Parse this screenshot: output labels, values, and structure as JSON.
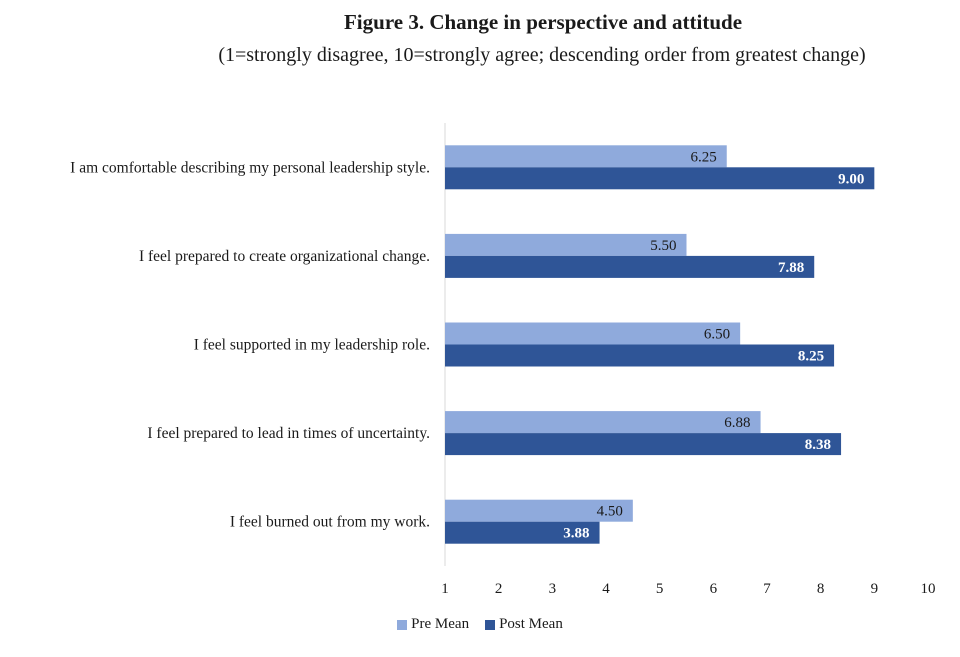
{
  "chart_data": {
    "type": "bar",
    "orientation": "horizontal",
    "title": "Figure 3. Change in perspective and attitude",
    "subtitle": "(1=strongly disagree, 10=strongly agree; descending order from greatest change)",
    "categories": [
      "I am comfortable describing my personal leadership style.",
      "I feel prepared to create organizational change.",
      "I feel supported in my leadership role.",
      "I feel prepared to lead in times of uncertainty.",
      "I feel burned out from my work."
    ],
    "series": [
      {
        "name": "Pre Mean",
        "values": [
          6.25,
          5.5,
          6.5,
          6.88,
          4.5
        ],
        "labels": [
          "6.25",
          "5.50",
          "6.50",
          "6.88",
          "4.50"
        ],
        "color": "#8faadc"
      },
      {
        "name": "Post Mean",
        "values": [
          9.0,
          7.88,
          8.25,
          8.38,
          3.88
        ],
        "labels": [
          "9.00",
          "7.88",
          "8.25",
          "8.38",
          "3.88"
        ],
        "color": "#2f5597"
      }
    ],
    "xlim": [
      1,
      10
    ],
    "xticks": [
      "1",
      "2",
      "3",
      "4",
      "5",
      "6",
      "7",
      "8",
      "9",
      "10"
    ],
    "grid": false,
    "legend_position": "bottom"
  }
}
